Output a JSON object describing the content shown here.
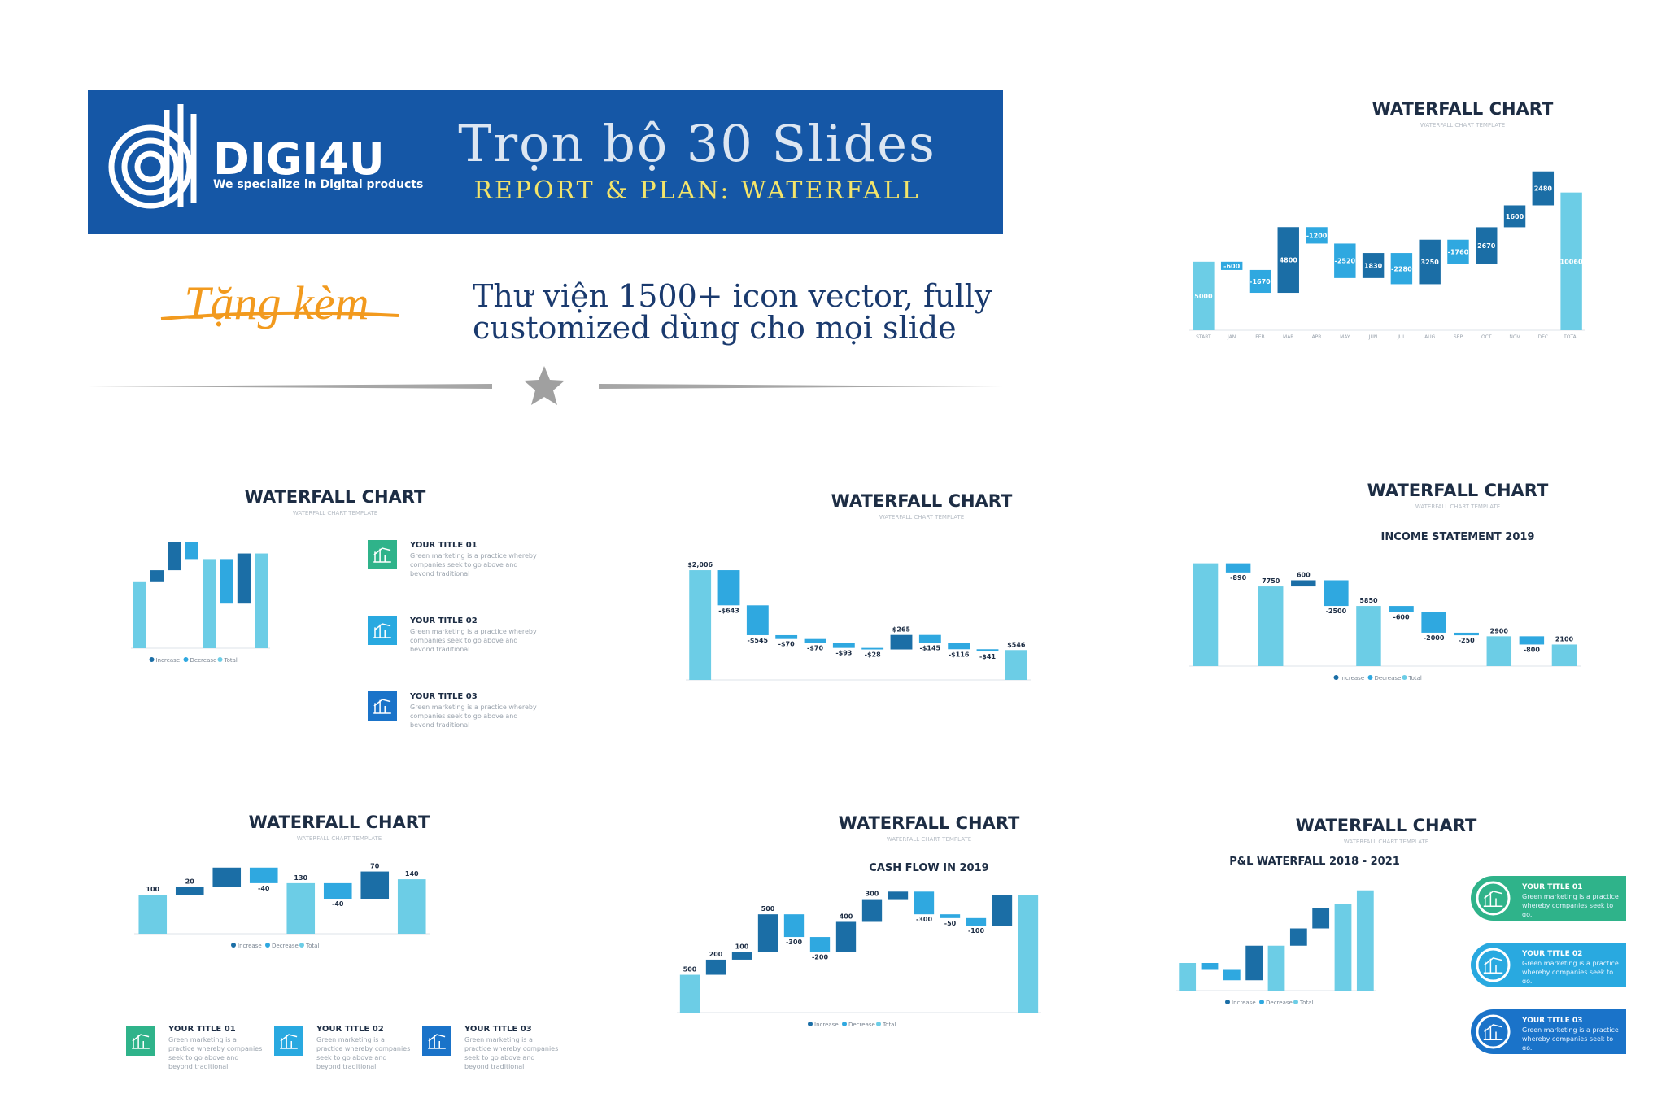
{
  "banner": {
    "logo": "DIGI4U",
    "tagline": "We specialize in Digital products",
    "title": "Trọn bộ 30 Slides",
    "subtitle": "REPORT & PLAN: WATERFALL"
  },
  "gift": {
    "label": "Tặng kèm",
    "lines": [
      "Thư viện 1500+ icon vector, fully",
      "customized dùng cho mọi slide"
    ]
  },
  "slides": [
    {
      "title": "WATERFALL CHART",
      "subtitle": "WATERFALL CHART TEMPLATE",
      "chart": {
        "type": "waterfall",
        "categories": [
          "START",
          "JAN",
          "FEB",
          "MAR",
          "APR",
          "MAY",
          "JUN",
          "JUL",
          "AUG",
          "SEP",
          "OCT",
          "NOV",
          "DEC",
          "TOTAL"
        ],
        "values": [
          5000,
          -600,
          -1670,
          4800,
          -1200,
          -2520,
          1830,
          -2280,
          3250,
          -1760,
          2670,
          1600,
          2480,
          10060
        ],
        "totals": [
          0,
          13
        ],
        "ylim": [
          0,
          12000
        ],
        "colors": {
          "increase": "#1b6ea6",
          "decrease": "#2fa8e0",
          "total": "#6ccde6"
        },
        "labels_inside": true
      }
    },
    {
      "title": "WATERFALL CHART",
      "subtitle": "WATERFALL CHART TEMPLATE",
      "chart": {
        "type": "waterfall",
        "values": [
          600,
          100,
          250,
          -150,
          800,
          -400,
          450,
          850
        ],
        "totals": [
          0,
          4,
          7
        ],
        "ylim": [
          0,
          1000
        ],
        "colors": {
          "increase": "#1b6ea6",
          "decrease": "#2fa8e0",
          "total": "#6ccde6"
        },
        "legend": [
          "Increase",
          "Decrease",
          "Total"
        ]
      },
      "items": [
        {
          "title": "YOUR TITLE 01",
          "text": "Green marketing is a practice whereby companies seek to go above and beyond traditional"
        },
        {
          "title": "YOUR TITLE 02",
          "text": "Green marketing is a practice whereby companies seek to go above and beyond traditional"
        },
        {
          "title": "YOUR TITLE 03",
          "text": "Green marketing is a practice whereby companies seek to go above and beyond traditional"
        }
      ]
    },
    {
      "title": "WATERFALL CHART",
      "subtitle": "WATERFALL CHART TEMPLATE",
      "chart": {
        "type": "waterfall",
        "values": [
          2006,
          -643,
          -545,
          -70,
          -70,
          -93,
          -28,
          265,
          -145,
          -116,
          -41,
          546
        ],
        "value_labels": [
          "$2,006",
          "-$643",
          "-$545",
          "-$70",
          "-$70",
          "-$93",
          "-$28",
          "$265",
          "-$145",
          "-$116",
          "-$41",
          "$546"
        ],
        "totals": [
          0,
          11
        ],
        "ylim": [
          0,
          2200
        ],
        "colors": {
          "increase": "#1b6ea6",
          "decrease": "#2fa8e0",
          "total": "#6ccde6"
        }
      }
    },
    {
      "title": "WATERFALL CHART",
      "subtitle": "WATERFALL CHART TEMPLATE",
      "heading": "INCOME STATEMENT 2019",
      "chart": {
        "type": "waterfall",
        "values": [
          10000,
          -890,
          7750,
          600,
          -2500,
          5850,
          -600,
          -2000,
          -250,
          2900,
          -800,
          2100
        ],
        "value_labels": [
          null,
          "-890",
          "7750",
          "600",
          "-2500",
          "5850",
          "-600",
          "-2000",
          "-250",
          "2900",
          "-800",
          "2100"
        ],
        "totals": [
          0,
          2,
          5,
          9,
          11
        ],
        "ylim": [
          0,
          11000
        ],
        "colors": {
          "increase": "#1b6ea6",
          "decrease": "#2fa8e0",
          "total": "#6ccde6"
        },
        "legend": [
          "Increase",
          "Decrease",
          "Total"
        ]
      }
    },
    {
      "title": "WATERFALL CHART",
      "subtitle": "WATERFALL CHART TEMPLATE",
      "chart": {
        "type": "waterfall",
        "values": [
          100,
          20,
          50,
          -40,
          130,
          -40,
          70,
          140
        ],
        "value_labels": [
          "100",
          "20",
          null,
          "-40",
          "130",
          "-40",
          "70",
          "140"
        ],
        "totals": [
          0,
          4,
          7
        ],
        "ylim": [
          0,
          180
        ],
        "colors": {
          "increase": "#1b6ea6",
          "decrease": "#2fa8e0",
          "total": "#6ccde6"
        },
        "legend": [
          "Increase",
          "Decrease",
          "Total"
        ]
      },
      "items": [
        {
          "title": "YOUR TITLE 01",
          "text": "Green marketing is a practice whereby companies seek to go above and beyond traditional"
        },
        {
          "title": "YOUR TITLE 02",
          "text": "Green marketing is a practice whereby companies seek to go above and beyond traditional"
        },
        {
          "title": "YOUR TITLE 03",
          "text": "Green marketing is a practice whereby companies seek to go above and beyond traditional"
        }
      ]
    },
    {
      "title": "WATERFALL CHART",
      "subtitle": "WATERFALL CHART TEMPLATE",
      "heading": "CASH FLOW IN 2019",
      "chart": {
        "type": "waterfall",
        "values": [
          500,
          200,
          100,
          500,
          -300,
          -200,
          400,
          300,
          100,
          -300,
          -50,
          -100,
          400,
          1550
        ],
        "value_labels": [
          "500",
          "200",
          "100",
          "500",
          "-300",
          "-200",
          "400",
          "300",
          null,
          "-300",
          "-50",
          "-100",
          null,
          null
        ],
        "totals": [
          0,
          13
        ],
        "ylim": [
          0,
          1700
        ],
        "colors": {
          "increase": "#1b6ea6",
          "decrease": "#2fa8e0",
          "total": "#6ccde6"
        },
        "legend": [
          "Increase",
          "Decrease",
          "Total"
        ]
      }
    },
    {
      "title": "WATERFALL CHART",
      "subtitle": "WATERFALL CHART TEMPLATE",
      "heading": "P&L WATERFALL 2018 - 2021",
      "chart": {
        "type": "waterfall",
        "values": [
          400,
          -100,
          -150,
          500,
          650,
          250,
          300,
          1250,
          1450
        ],
        "totals": [
          0,
          4,
          7,
          8
        ],
        "ylim": [
          0,
          1600
        ],
        "colors": {
          "increase": "#1b6ea6",
          "decrease": "#2fa8e0",
          "total": "#6ccde6"
        },
        "legend": [
          "Increase",
          "Decrease",
          "Total"
        ]
      },
      "items": [
        {
          "title": "YOUR TITLE 01",
          "text": "Green marketing is a practice whereby companies seek to go."
        },
        {
          "title": "YOUR TITLE 02",
          "text": "Green marketing is a practice whereby companies seek to go."
        },
        {
          "title": "YOUR TITLE 03",
          "text": "Green marketing is a practice whereby companies seek to go."
        }
      ]
    }
  ]
}
